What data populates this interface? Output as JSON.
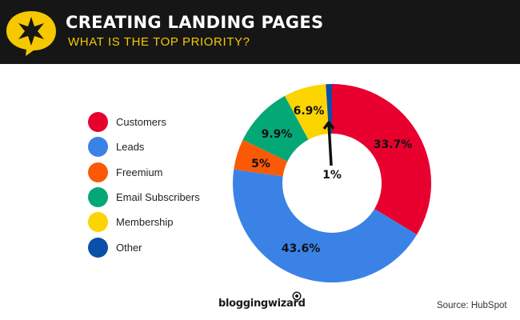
{
  "header": {
    "title": "CREATING LANDING PAGES",
    "subtitle": "WHAT IS THE TOP PRIORITY?",
    "logo_icon": "star-speech-bubble-icon",
    "colors": {
      "background": "#161616",
      "accent": "#f5c800"
    }
  },
  "legend": {
    "items": [
      {
        "label": "Customers",
        "color": "#e8002f"
      },
      {
        "label": "Leads",
        "color": "#3a82e6"
      },
      {
        "label": "Freemium",
        "color": "#fa5a05"
      },
      {
        "label": "Email Subscribers",
        "color": "#04a877"
      },
      {
        "label": "Membership",
        "color": "#fcd400"
      },
      {
        "label": "Other",
        "color": "#0a4fa8"
      }
    ]
  },
  "chart_data": {
    "type": "pie",
    "subtype": "donut",
    "title": "CREATING LANDING PAGES",
    "subtitle": "WHAT IS THE TOP PRIORITY?",
    "categories": [
      "Customers",
      "Leads",
      "Freemium",
      "Email Subscribers",
      "Membership",
      "Other"
    ],
    "values": [
      33.7,
      43.6,
      5,
      9.9,
      6.9,
      1
    ],
    "labels": [
      "33.7%",
      "43.6%",
      "5%",
      "9.9%",
      "6.9%",
      "1%"
    ],
    "colors": [
      "#e8002f",
      "#3a82e6",
      "#fa5a05",
      "#04a877",
      "#fcd400",
      "#0a4fa8"
    ],
    "legend_position": "left",
    "annotations": [
      "Arrow pointing to 1% Other slice"
    ]
  },
  "footer": {
    "brand": "bloggingwizard",
    "source": "Source:  HubSpot"
  }
}
